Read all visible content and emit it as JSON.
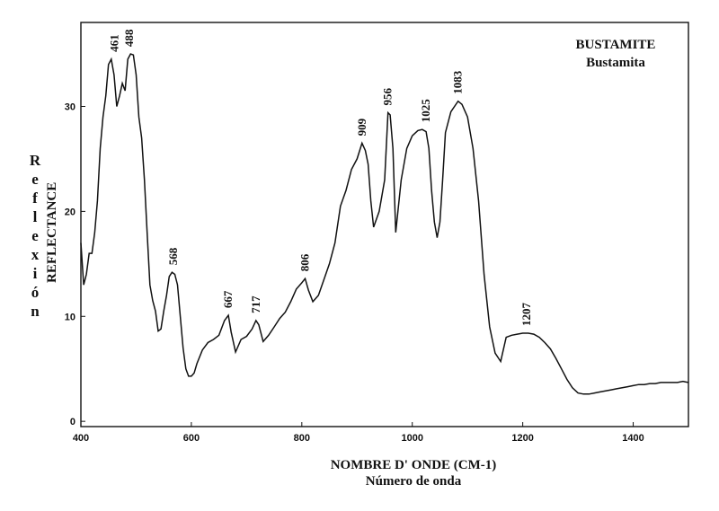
{
  "chart_data": {
    "type": "line",
    "title": "BUSTAMITE",
    "subtitle": "Bustamita",
    "xlabel": "NOMBRE D' ONDE (CM-1)",
    "xlabel_es": "Número de onda",
    "ylabel": "REFLECTANCE",
    "ylabel_es": "Reflexión",
    "xlim": [
      400,
      1500
    ],
    "ylim": [
      -0.5,
      38
    ],
    "xticks": [
      400,
      600,
      800,
      1000,
      1200,
      1400
    ],
    "yticks": [
      0,
      10,
      20,
      30
    ],
    "grid": false,
    "annotations": [
      {
        "x": 461,
        "label": "461",
        "y": 34.5
      },
      {
        "x": 488,
        "label": "488",
        "y": 35
      },
      {
        "x": 568,
        "label": "568",
        "y": 14.2
      },
      {
        "x": 667,
        "label": "667",
        "y": 10.1
      },
      {
        "x": 717,
        "label": "717",
        "y": 9.6
      },
      {
        "x": 806,
        "label": "806",
        "y": 13.6
      },
      {
        "x": 909,
        "label": "909",
        "y": 26.5
      },
      {
        "x": 956,
        "label": "956",
        "y": 29.4
      },
      {
        "x": 1025,
        "label": "1025",
        "y": 27.8
      },
      {
        "x": 1083,
        "label": "1083",
        "y": 30.5
      },
      {
        "x": 1207,
        "label": "1207",
        "y": 8.4
      }
    ],
    "series": [
      {
        "x": [
          400,
          405,
          410,
          415,
          420,
          425,
          430,
          435,
          440,
          445,
          450,
          455,
          460,
          465,
          470,
          475,
          480,
          485,
          490,
          495,
          500,
          505,
          510,
          515,
          520,
          525,
          530,
          535,
          540,
          545,
          550,
          555,
          560,
          565,
          570,
          575,
          580,
          585,
          590,
          595,
          600,
          605,
          610,
          620,
          630,
          640,
          650,
          660,
          667,
          672,
          680,
          690,
          700,
          710,
          717,
          722,
          730,
          740,
          750,
          760,
          770,
          780,
          790,
          800,
          806,
          812,
          820,
          830,
          840,
          850,
          860,
          870,
          880,
          890,
          900,
          909,
          915,
          920,
          925,
          930,
          940,
          950,
          956,
          960,
          965,
          970,
          980,
          990,
          1000,
          1010,
          1018,
          1025,
          1030,
          1035,
          1040,
          1045,
          1050,
          1055,
          1060,
          1070,
          1083,
          1090,
          1100,
          1110,
          1120,
          1130,
          1140,
          1150,
          1160,
          1163,
          1170,
          1180,
          1190,
          1200,
          1210,
          1220,
          1230,
          1240,
          1250,
          1260,
          1270,
          1280,
          1290,
          1300,
          1310,
          1320,
          1330,
          1340,
          1350,
          1360,
          1370,
          1380,
          1390,
          1400,
          1410,
          1420,
          1430,
          1440,
          1450,
          1460,
          1470,
          1480,
          1490,
          1500
        ],
        "y": [
          17,
          13,
          14,
          16,
          16,
          18,
          21,
          26,
          29,
          31,
          34,
          34.5,
          33,
          30,
          31,
          32.2,
          31.5,
          34.5,
          35,
          34.9,
          33,
          29,
          27,
          23,
          18,
          13,
          11.5,
          10.5,
          8.6,
          8.8,
          10.5,
          12,
          13.8,
          14.2,
          14,
          13,
          10,
          7,
          5,
          4.3,
          4.3,
          4.6,
          5.5,
          6.8,
          7.5,
          7.8,
          8.2,
          9.6,
          10.1,
          8.5,
          6.6,
          7.8,
          8.1,
          8.8,
          9.6,
          9.2,
          7.6,
          8.2,
          9,
          9.8,
          10.4,
          11.4,
          12.6,
          13.2,
          13.6,
          12.5,
          11.4,
          12,
          13.5,
          15,
          17,
          20.5,
          22,
          24,
          25,
          26.5,
          25.8,
          24.5,
          21,
          18.5,
          20,
          23,
          29.4,
          29.2,
          26,
          18,
          23,
          26,
          27.2,
          27.7,
          27.8,
          27.6,
          26,
          22,
          19,
          17.5,
          19,
          23,
          27.5,
          29.5,
          30.5,
          30.2,
          29,
          26,
          21,
          14,
          9,
          6.5,
          5.7,
          6.4,
          8,
          8.2,
          8.3,
          8.4,
          8.4,
          8.3,
          8,
          7.5,
          6.9,
          6,
          5,
          4,
          3.2,
          2.7,
          2.6,
          2.6,
          2.7,
          2.8,
          2.9,
          3,
          3.1,
          3.2,
          3.3,
          3.4,
          3.5,
          3.5,
          3.6,
          3.6,
          3.7,
          3.7,
          3.7,
          3.7,
          3.8,
          3.7
        ]
      }
    ]
  }
}
